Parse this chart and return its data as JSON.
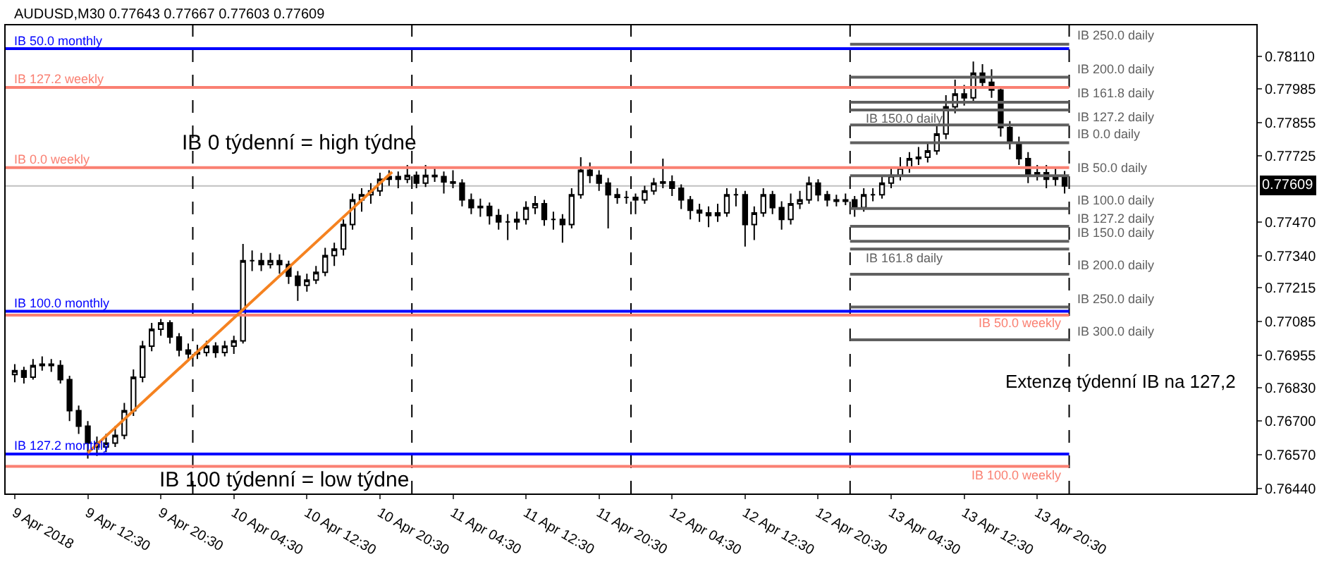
{
  "chart_data": {
    "type": "candlestick",
    "color": "#000000",
    "x": [
      "2018-04-09T04:30",
      "2018-04-09T05:30",
      "2018-04-09T06:30",
      "2018-04-09T07:30",
      "2018-04-09T08:30",
      "2018-04-09T09:30",
      "2018-04-09T10:30",
      "2018-04-09T11:30",
      "2018-04-09T12:30",
      "2018-04-09T13:30",
      "2018-04-09T14:30",
      "2018-04-09T15:30",
      "2018-04-09T16:30",
      "2018-04-09T17:30",
      "2018-04-09T18:30",
      "2018-04-09T19:30",
      "2018-04-09T20:30",
      "2018-04-09T21:30",
      "2018-04-09T22:30",
      "2018-04-09T23:30",
      "2018-04-10T00:30",
      "2018-04-10T01:30",
      "2018-04-10T02:30",
      "2018-04-10T03:30",
      "2018-04-10T04:30",
      "2018-04-10T05:30",
      "2018-04-10T06:30",
      "2018-04-10T07:30",
      "2018-04-10T08:30",
      "2018-04-10T09:30",
      "2018-04-10T10:30",
      "2018-04-10T11:30",
      "2018-04-10T12:30",
      "2018-04-10T13:30",
      "2018-04-10T14:30",
      "2018-04-10T15:30",
      "2018-04-10T16:30",
      "2018-04-10T17:30",
      "2018-04-10T18:30",
      "2018-04-10T19:30",
      "2018-04-10T20:30",
      "2018-04-10T21:30",
      "2018-04-10T22:30",
      "2018-04-10T23:30",
      "2018-04-11T00:30",
      "2018-04-11T01:30",
      "2018-04-11T02:30",
      "2018-04-11T03:30",
      "2018-04-11T04:30",
      "2018-04-11T05:30",
      "2018-04-11T06:30",
      "2018-04-11T07:30",
      "2018-04-11T08:30",
      "2018-04-11T09:30",
      "2018-04-11T10:30",
      "2018-04-11T11:30",
      "2018-04-11T12:30",
      "2018-04-11T13:30",
      "2018-04-11T14:30",
      "2018-04-11T15:30",
      "2018-04-11T16:30",
      "2018-04-11T17:30",
      "2018-04-11T18:30",
      "2018-04-11T19:30",
      "2018-04-11T20:30",
      "2018-04-11T21:30",
      "2018-04-11T22:30",
      "2018-04-11T23:30",
      "2018-04-12T00:30",
      "2018-04-12T01:30",
      "2018-04-12T02:30",
      "2018-04-12T03:30",
      "2018-04-12T04:30",
      "2018-04-12T05:30",
      "2018-04-12T06:30",
      "2018-04-12T07:30",
      "2018-04-12T08:30",
      "2018-04-12T09:30",
      "2018-04-12T10:30",
      "2018-04-12T11:30",
      "2018-04-12T12:30",
      "2018-04-12T13:30",
      "2018-04-12T14:30",
      "2018-04-12T15:30",
      "2018-04-12T16:30",
      "2018-04-12T17:30",
      "2018-04-12T18:30",
      "2018-04-12T19:30",
      "2018-04-12T20:30",
      "2018-04-12T21:30",
      "2018-04-12T22:30",
      "2018-04-12T23:30",
      "2018-04-13T00:30",
      "2018-04-13T01:30",
      "2018-04-13T02:30",
      "2018-04-13T03:30",
      "2018-04-13T04:30",
      "2018-04-13T05:30",
      "2018-04-13T06:30",
      "2018-04-13T07:30",
      "2018-04-13T08:30",
      "2018-04-13T09:30",
      "2018-04-13T10:30",
      "2018-04-13T11:30",
      "2018-04-13T12:30",
      "2018-04-13T13:30",
      "2018-04-13T14:30",
      "2018-04-13T15:30",
      "2018-04-13T16:30",
      "2018-04-13T17:30",
      "2018-04-13T18:30",
      "2018-04-13T19:30",
      "2018-04-13T20:30",
      "2018-04-13T21:30",
      "2018-04-13T22:30",
      "2018-04-13T23:30"
    ],
    "ohlc": [
      [
        0.7688,
        0.7692,
        0.7685,
        0.76895
      ],
      [
        0.76895,
        0.7691,
        0.76845,
        0.7687
      ],
      [
        0.7687,
        0.7694,
        0.7686,
        0.76915
      ],
      [
        0.76915,
        0.7695,
        0.76895,
        0.7692
      ],
      [
        0.7692,
        0.7694,
        0.7689,
        0.76915
      ],
      [
        0.76915,
        0.76935,
        0.76845,
        0.7686
      ],
      [
        0.7686,
        0.76875,
        0.767,
        0.7674
      ],
      [
        0.7674,
        0.7676,
        0.7665,
        0.7668
      ],
      [
        0.7668,
        0.767,
        0.76555,
        0.76615
      ],
      [
        0.76615,
        0.7664,
        0.76565,
        0.766
      ],
      [
        0.766,
        0.7665,
        0.7658,
        0.76615
      ],
      [
        0.76615,
        0.7668,
        0.766,
        0.76645
      ],
      [
        0.76645,
        0.7677,
        0.7663,
        0.7674
      ],
      [
        0.7674,
        0.769,
        0.7672,
        0.7687
      ],
      [
        0.7687,
        0.7701,
        0.7685,
        0.7699
      ],
      [
        0.7699,
        0.7708,
        0.7697,
        0.77055
      ],
      [
        0.77055,
        0.77095,
        0.7703,
        0.7708
      ],
      [
        0.7708,
        0.7709,
        0.77,
        0.77025
      ],
      [
        0.77025,
        0.7704,
        0.7695,
        0.76975
      ],
      [
        0.76975,
        0.77,
        0.7693,
        0.7696
      ],
      [
        0.7696,
        0.76995,
        0.7694,
        0.76965
      ],
      [
        0.76965,
        0.7701,
        0.7695,
        0.7699
      ],
      [
        0.7699,
        0.77005,
        0.76945,
        0.76965
      ],
      [
        0.76965,
        0.7701,
        0.7695,
        0.7699
      ],
      [
        0.7699,
        0.7703,
        0.7696,
        0.7701
      ],
      [
        0.7701,
        0.77385,
        0.77,
        0.7732
      ],
      [
        0.7732,
        0.7736,
        0.7728,
        0.7732
      ],
      [
        0.7732,
        0.7735,
        0.7728,
        0.77305
      ],
      [
        0.77305,
        0.7735,
        0.7729,
        0.7732
      ],
      [
        0.7732,
        0.77345,
        0.7727,
        0.77305
      ],
      [
        0.77305,
        0.7732,
        0.7723,
        0.7726
      ],
      [
        0.7726,
        0.7728,
        0.77165,
        0.77225
      ],
      [
        0.77225,
        0.7727,
        0.772,
        0.77245
      ],
      [
        0.77245,
        0.773,
        0.7723,
        0.77275
      ],
      [
        0.77275,
        0.7737,
        0.7726,
        0.7734
      ],
      [
        0.7734,
        0.7739,
        0.773,
        0.77365
      ],
      [
        0.77365,
        0.7748,
        0.7734,
        0.7746
      ],
      [
        0.7746,
        0.7758,
        0.7744,
        0.77555
      ],
      [
        0.77555,
        0.776,
        0.7751,
        0.77575
      ],
      [
        0.77575,
        0.7762,
        0.7754,
        0.7759
      ],
      [
        0.7759,
        0.7766,
        0.7757,
        0.77635
      ],
      [
        0.77635,
        0.7767,
        0.7761,
        0.77645
      ],
      [
        0.77645,
        0.77665,
        0.776,
        0.77635
      ],
      [
        0.77635,
        0.7769,
        0.7762,
        0.7765
      ],
      [
        0.7765,
        0.77665,
        0.776,
        0.7762
      ],
      [
        0.7762,
        0.7769,
        0.77605,
        0.7765
      ],
      [
        0.7765,
        0.7768,
        0.77625,
        0.77645
      ],
      [
        0.77645,
        0.77665,
        0.7758,
        0.77625
      ],
      [
        0.77625,
        0.7767,
        0.776,
        0.7762
      ],
      [
        0.7762,
        0.77635,
        0.7753,
        0.77555
      ],
      [
        0.77555,
        0.7758,
        0.775,
        0.77525
      ],
      [
        0.77525,
        0.7756,
        0.7749,
        0.7753
      ],
      [
        0.7753,
        0.77545,
        0.7746,
        0.77495
      ],
      [
        0.77495,
        0.7752,
        0.7744,
        0.7747
      ],
      [
        0.7747,
        0.775,
        0.774,
        0.7747
      ],
      [
        0.7747,
        0.7751,
        0.7744,
        0.7748
      ],
      [
        0.7748,
        0.7755,
        0.7746,
        0.77525
      ],
      [
        0.77525,
        0.7757,
        0.775,
        0.7754
      ],
      [
        0.7754,
        0.77555,
        0.77455,
        0.7748
      ],
      [
        0.7748,
        0.7751,
        0.7744,
        0.7748
      ],
      [
        0.7748,
        0.775,
        0.7739,
        0.7746
      ],
      [
        0.7746,
        0.776,
        0.77445,
        0.77575
      ],
      [
        0.77575,
        0.7772,
        0.7756,
        0.7767
      ],
      [
        0.7767,
        0.777,
        0.7762,
        0.7765
      ],
      [
        0.7765,
        0.7767,
        0.7759,
        0.7762
      ],
      [
        0.7762,
        0.7764,
        0.77445,
        0.77575
      ],
      [
        0.77575,
        0.776,
        0.7754,
        0.77565
      ],
      [
        0.77565,
        0.7759,
        0.7754,
        0.77565
      ],
      [
        0.77565,
        0.7758,
        0.775,
        0.77555
      ],
      [
        0.77555,
        0.7761,
        0.7754,
        0.7759
      ],
      [
        0.7759,
        0.7764,
        0.77575,
        0.7762
      ],
      [
        0.7762,
        0.77715,
        0.776,
        0.77625
      ],
      [
        0.77625,
        0.7765,
        0.7757,
        0.776
      ],
      [
        0.776,
        0.77615,
        0.7752,
        0.77555
      ],
      [
        0.77555,
        0.7757,
        0.7748,
        0.77515
      ],
      [
        0.77515,
        0.7754,
        0.7747,
        0.77505
      ],
      [
        0.77505,
        0.7753,
        0.7745,
        0.77495
      ],
      [
        0.77495,
        0.7754,
        0.7747,
        0.77505
      ],
      [
        0.77505,
        0.776,
        0.7749,
        0.77575
      ],
      [
        0.77575,
        0.776,
        0.7753,
        0.77575
      ],
      [
        0.77575,
        0.7759,
        0.77375,
        0.7746
      ],
      [
        0.7746,
        0.7753,
        0.774,
        0.77505
      ],
      [
        0.77505,
        0.776,
        0.7749,
        0.77575
      ],
      [
        0.77575,
        0.7759,
        0.775,
        0.77525
      ],
      [
        0.77525,
        0.7755,
        0.7744,
        0.7748
      ],
      [
        0.7748,
        0.7758,
        0.7746,
        0.7754
      ],
      [
        0.7754,
        0.7759,
        0.7752,
        0.77555
      ],
      [
        0.77555,
        0.77645,
        0.7754,
        0.7762
      ],
      [
        0.7762,
        0.77635,
        0.7755,
        0.77575
      ],
      [
        0.77575,
        0.7759,
        0.7753,
        0.77555
      ],
      [
        0.77555,
        0.77575,
        0.7753,
        0.7755
      ],
      [
        0.7755,
        0.7758,
        0.77535,
        0.77555
      ],
      [
        0.77555,
        0.7757,
        0.7749,
        0.77525
      ],
      [
        0.77525,
        0.776,
        0.7751,
        0.77575
      ],
      [
        0.77575,
        0.776,
        0.7755,
        0.77575
      ],
      [
        0.77575,
        0.7765,
        0.7756,
        0.7762
      ],
      [
        0.7762,
        0.7768,
        0.776,
        0.7765
      ],
      [
        0.7765,
        0.7772,
        0.7763,
        0.7768
      ],
      [
        0.7768,
        0.7774,
        0.7766,
        0.77715
      ],
      [
        0.77715,
        0.7776,
        0.7769,
        0.7772
      ],
      [
        0.7772,
        0.7778,
        0.777,
        0.77745
      ],
      [
        0.77745,
        0.7784,
        0.7773,
        0.7781
      ],
      [
        0.7781,
        0.7796,
        0.7779,
        0.77915
      ],
      [
        0.77915,
        0.7802,
        0.7789,
        0.77965
      ],
      [
        0.77965,
        0.78,
        0.7792,
        0.7795
      ],
      [
        0.7795,
        0.7809,
        0.7793,
        0.78045
      ],
      [
        0.78045,
        0.7808,
        0.7799,
        0.7801
      ],
      [
        0.7801,
        0.7806,
        0.7795,
        0.7798
      ],
      [
        0.7798,
        0.77995,
        0.778,
        0.77835
      ],
      [
        0.77835,
        0.7786,
        0.7775,
        0.77775
      ],
      [
        0.77775,
        0.778,
        0.7769,
        0.77715
      ],
      [
        0.77715,
        0.7774,
        0.7762,
        0.7765
      ],
      [
        0.7765,
        0.7769,
        0.7763,
        0.7766
      ],
      [
        0.7766,
        0.7769,
        0.776,
        0.77635
      ],
      [
        0.77635,
        0.7768,
        0.7761,
        0.77645
      ],
      [
        0.77645,
        0.77667,
        0.7758,
        0.77609
      ]
    ],
    "series": [
      {
        "type": "line",
        "name": "IB 50.0 monthly",
        "color": "#0000ff",
        "x": [
          "2018-04-09T03:30",
          "2018-04-14T00:00"
        ],
        "values": [
          0.7814,
          0.7814
        ]
      },
      {
        "type": "line",
        "name": "IB 127.2 weekly",
        "color": "#fa8072",
        "x": [
          "2018-04-09T03:30",
          "2018-04-14T00:00"
        ],
        "values": [
          0.7799,
          0.7799
        ]
      },
      {
        "type": "line",
        "name": "IB 0.0 weekly",
        "color": "#fa8072",
        "x": [
          "2018-04-09T03:30",
          "2018-04-14T00:00"
        ],
        "values": [
          0.7768,
          0.7768
        ]
      },
      {
        "type": "line",
        "name": "IB 100.0 monthly",
        "color": "#0000ff",
        "x": [
          "2018-04-09T03:30",
          "2018-04-14T00:00"
        ],
        "values": [
          0.77125,
          0.77125
        ]
      },
      {
        "type": "line",
        "name": "IB 50.0 weekly",
        "color": "#fa8072",
        "x": [
          "2018-04-09T03:30",
          "2018-04-14T00:00"
        ],
        "values": [
          0.7711,
          0.7711
        ]
      },
      {
        "type": "line",
        "name": "IB 127.2 monthly",
        "color": "#0000ff",
        "x": [
          "2018-04-09T03:30",
          "2018-04-14T00:00"
        ],
        "values": [
          0.76573,
          0.76573
        ]
      },
      {
        "type": "line",
        "name": "IB 100.0 weekly",
        "color": "#fa8072",
        "x": [
          "2018-04-09T03:30",
          "2018-04-14T00:00"
        ],
        "values": [
          0.76525,
          0.76525
        ]
      },
      {
        "type": "line",
        "name": "IB 250.0 daily",
        "color": "#606060",
        "x": [
          "2018-04-13T00:00",
          "2018-04-14T00:00"
        ],
        "values": [
          0.78157,
          0.78157
        ]
      },
      {
        "type": "line",
        "name": "IB 200.0 daily",
        "color": "#606060",
        "x": [
          "2018-04-13T00:00",
          "2018-04-14T00:00"
        ],
        "values": [
          0.7803,
          0.7803
        ]
      },
      {
        "type": "line",
        "name": "IB 161.8 daily",
        "color": "#606060",
        "x": [
          "2018-04-13T00:00",
          "2018-04-14T00:00"
        ],
        "values": [
          0.77933,
          0.77933
        ]
      },
      {
        "type": "line",
        "name": "IB 150.0 daily",
        "color": "#606060",
        "x": [
          "2018-04-13T00:00",
          "2018-04-14T00:00"
        ],
        "values": [
          0.77903,
          0.77903
        ]
      },
      {
        "type": "line",
        "name": "IB 127.2 daily",
        "color": "#606060",
        "x": [
          "2018-04-13T00:00",
          "2018-04-14T00:00"
        ],
        "values": [
          0.77845,
          0.77845
        ]
      },
      {
        "type": "line",
        "name": "IB 0.0 daily",
        "color": "#606060",
        "x": [
          "2018-04-13T00:00",
          "2018-04-14T00:00"
        ],
        "values": [
          0.77776,
          0.77776
        ]
      },
      {
        "type": "line",
        "name": "IB 50.0 daily",
        "color": "#606060",
        "x": [
          "2018-04-13T00:00",
          "2018-04-14T00:00"
        ],
        "values": [
          0.77649,
          0.77649
        ]
      },
      {
        "type": "line",
        "name": "IB 100.0 daily",
        "color": "#606060",
        "x": [
          "2018-04-13T00:00",
          "2018-04-14T00:00"
        ],
        "values": [
          0.77522,
          0.77522
        ]
      },
      {
        "type": "line",
        "name": "IB 127.2 daily",
        "color": "#606060",
        "x": [
          "2018-04-13T00:00",
          "2018-04-14T00:00"
        ],
        "values": [
          0.77453,
          0.77453
        ]
      },
      {
        "type": "line",
        "name": "IB 150.0 daily",
        "color": "#606060",
        "x": [
          "2018-04-13T00:00",
          "2018-04-14T00:00"
        ],
        "values": [
          0.77395,
          0.77395
        ]
      },
      {
        "type": "line",
        "name": "IB 161.8 daily",
        "color": "#606060",
        "x": [
          "2018-04-13T00:00",
          "2018-04-14T00:00"
        ],
        "values": [
          0.77365,
          0.77365
        ]
      },
      {
        "type": "line",
        "name": "IB 200.0 daily",
        "color": "#606060",
        "x": [
          "2018-04-13T00:00",
          "2018-04-14T00:00"
        ],
        "values": [
          0.77268,
          0.77268
        ]
      },
      {
        "type": "line",
        "name": "IB 250.0 daily",
        "color": "#606060",
        "x": [
          "2018-04-13T00:00",
          "2018-04-14T00:00"
        ],
        "values": [
          0.77141,
          0.77141
        ]
      },
      {
        "type": "line",
        "name": "IB 300.0 daily",
        "color": "#606060",
        "x": [
          "2018-04-13T00:00",
          "2018-04-14T00:00"
        ],
        "values": [
          0.77014,
          0.77014
        ]
      },
      {
        "type": "line",
        "color": "#f58220",
        "x": [
          "2018-04-09T12:30",
          "2018-04-10T21:50"
        ],
        "values": [
          0.76577,
          0.77663
        ]
      }
    ],
    "ref_lines": [
      {
        "axis": "y",
        "value": 0.77609,
        "label": "0.77609",
        "color": "#c0c0c0"
      },
      {
        "axis": "x",
        "value": "2018-04-10T00:00",
        "color": "#000000",
        "line_style": "dashed"
      },
      {
        "axis": "x",
        "value": "2018-04-11T00:00",
        "color": "#000000",
        "line_style": "dashed"
      },
      {
        "axis": "x",
        "value": "2018-04-12T00:00",
        "color": "#000000",
        "line_style": "dashed"
      },
      {
        "axis": "x",
        "value": "2018-04-13T00:00",
        "color": "#000000",
        "line_style": "dashed"
      },
      {
        "axis": "x",
        "value": "2018-04-14T00:00",
        "color": "#000000",
        "line_style": "dashed"
      }
    ],
    "annotations": [
      "AUDUSD,M30 0.77643 0.77667 0.77603 0.77609",
      "IB 0 týdenní = high týdne",
      "IB 100 týdenní = low týdne",
      "Extenze týdenní IB na 127,2"
    ],
    "xlim": [
      "2018-04-09T03:30",
      "2018-04-14T20:30"
    ],
    "xticks": [
      {
        "value": "2018-04-09T04:30",
        "label": "9 Apr 2018"
      },
      {
        "value": "2018-04-09T12:30",
        "label": "9 Apr 12:30"
      },
      {
        "value": "2018-04-09T20:30",
        "label": "9 Apr 20:30"
      },
      {
        "value": "2018-04-10T04:30",
        "label": "10 Apr 04:30"
      },
      {
        "value": "2018-04-10T12:30",
        "label": "10 Apr 12:30"
      },
      {
        "value": "2018-04-10T20:30",
        "label": "10 Apr 20:30"
      },
      {
        "value": "2018-04-11T04:30",
        "label": "11 Apr 04:30"
      },
      {
        "value": "2018-04-11T12:30",
        "label": "11 Apr 12:30"
      },
      {
        "value": "2018-04-11T20:30",
        "label": "11 Apr 20:30"
      },
      {
        "value": "2018-04-12T04:30",
        "label": "12 Apr 04:30"
      },
      {
        "value": "2018-04-12T12:30",
        "label": "12 Apr 12:30"
      },
      {
        "value": "2018-04-12T20:30",
        "label": "12 Apr 20:30"
      },
      {
        "value": "2018-04-13T04:30",
        "label": "13 Apr 04:30"
      },
      {
        "value": "2018-04-13T12:30",
        "label": "13 Apr 12:30"
      },
      {
        "value": "2018-04-13T20:30",
        "label": "13 Apr 20:30"
      }
    ],
    "ylim": [
      0.7642,
      0.7823
    ],
    "yticks": [
      {
        "value": 0.7811,
        "label": "0.78110"
      },
      {
        "value": 0.77985,
        "label": "0.77985"
      },
      {
        "value": 0.77855,
        "label": "0.77855"
      },
      {
        "value": 0.77725,
        "label": "0.77725"
      },
      {
        "value": 0.7747,
        "label": "0.77470"
      },
      {
        "value": 0.7734,
        "label": "0.77340"
      },
      {
        "value": 0.77215,
        "label": "0.77215"
      },
      {
        "value": 0.77085,
        "label": "0.77085"
      },
      {
        "value": 0.76955,
        "label": "0.76955"
      },
      {
        "value": 0.7683,
        "label": "0.76830"
      },
      {
        "value": 0.767,
        "label": "0.76700"
      },
      {
        "value": 0.7657,
        "label": "0.76570"
      },
      {
        "value": 0.7644,
        "label": "0.76440"
      }
    ],
    "grid": false,
    "legend": false
  }
}
